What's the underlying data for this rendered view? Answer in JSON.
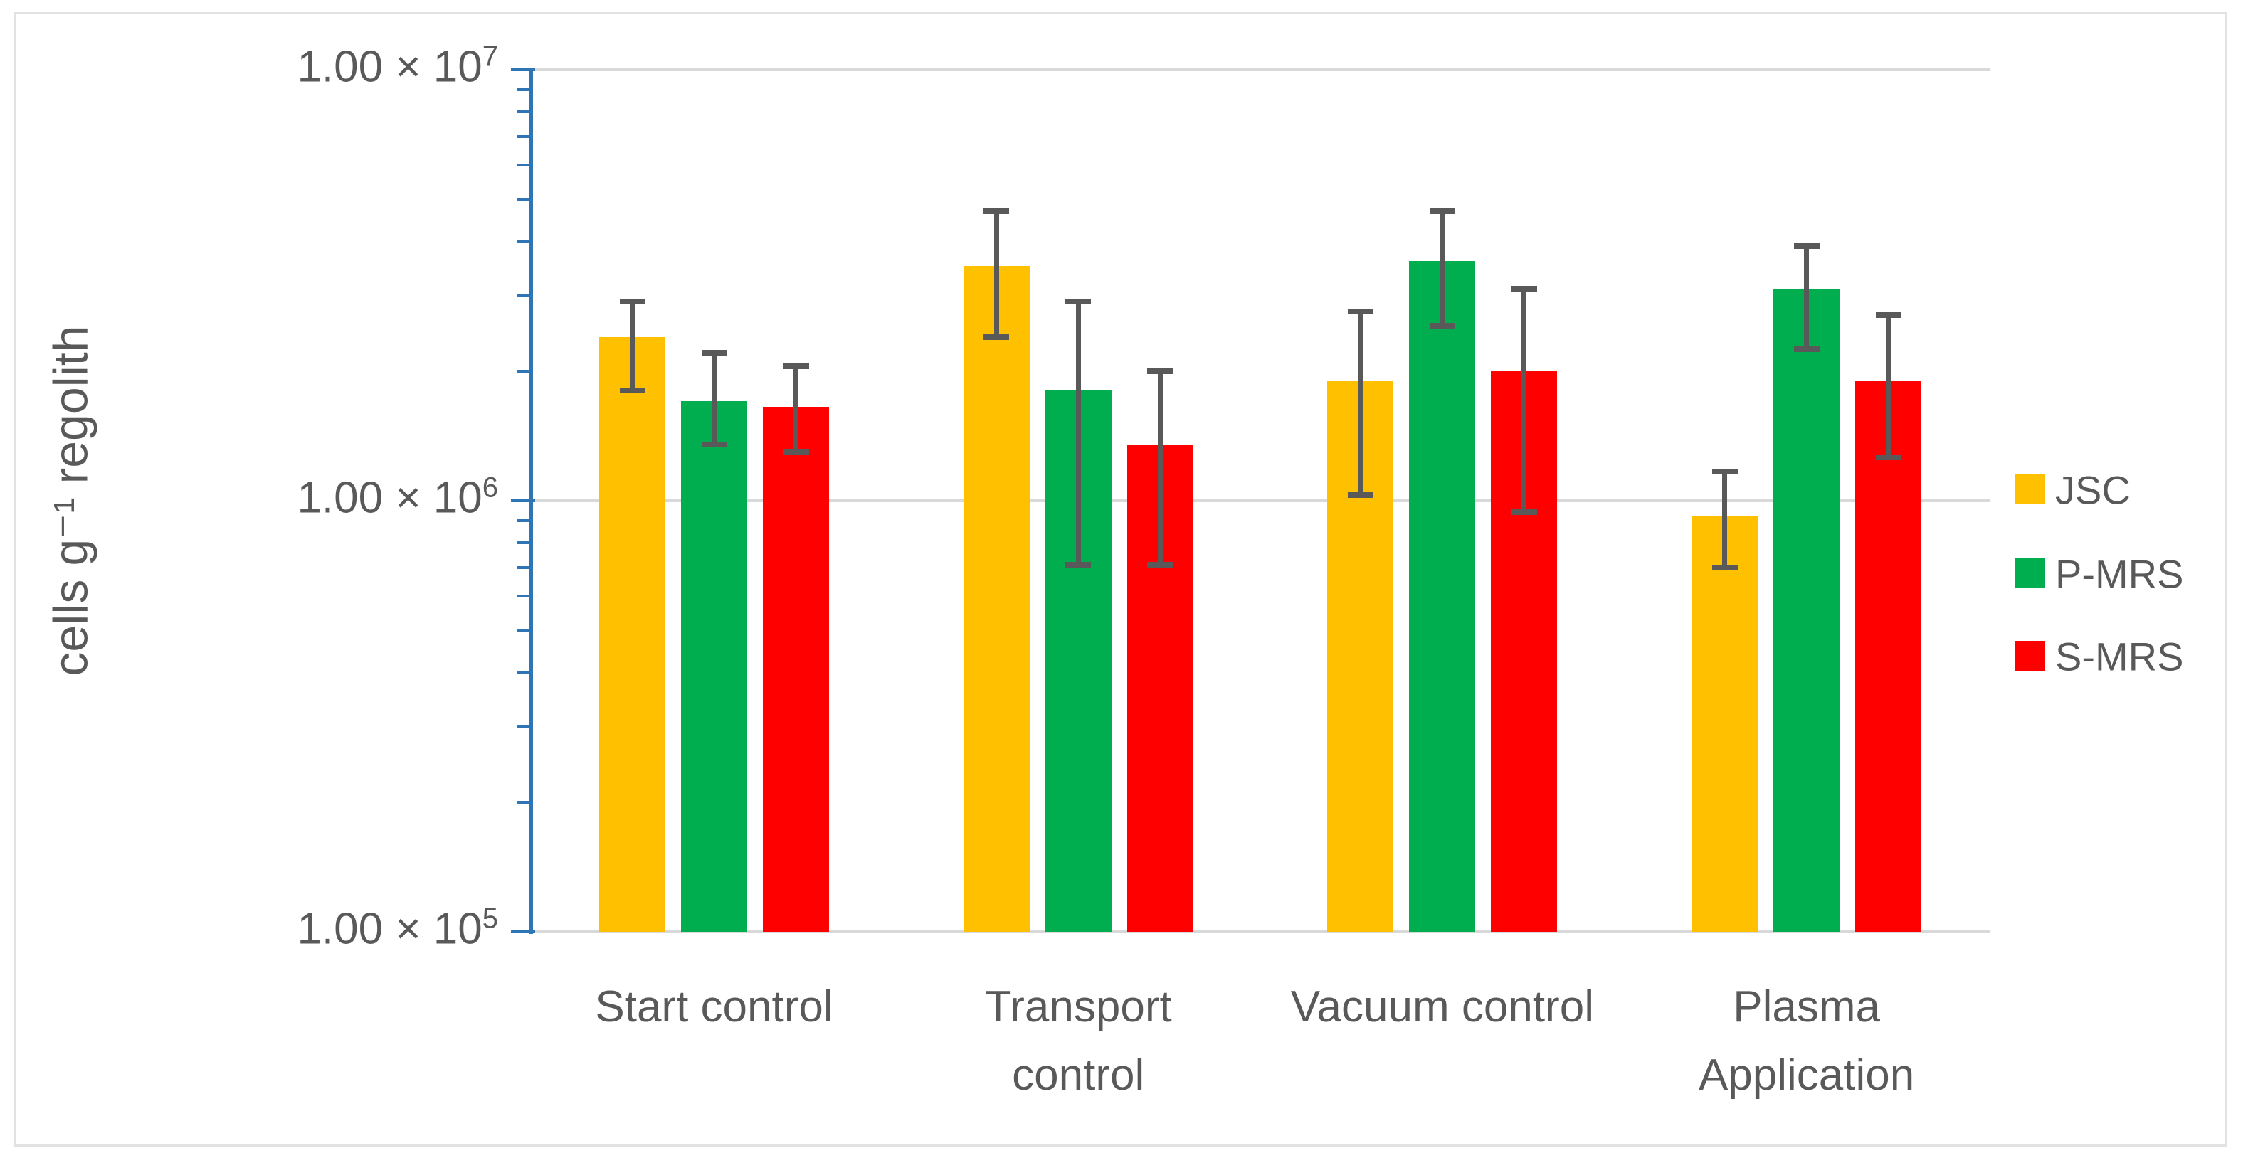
{
  "figure": {
    "background": "#FFFFFF",
    "border_color": "#E2E2E2"
  },
  "chart_data": {
    "type": "bar",
    "scale": "log",
    "title": "",
    "xlabel": "",
    "ylabel": "cells g⁻¹ regolith",
    "ylim": [
      100000,
      10000000
    ],
    "grid": "horizontal-major",
    "legend_position": "right",
    "axis_color": "#2E75B6",
    "gridline_color": "#D9D9D9",
    "error_bar_color": "#595959",
    "text_color": "#595959",
    "y_ticks": [
      {
        "base": "1.00 × 10",
        "exp": "7",
        "value": 10000000
      },
      {
        "base": "1.00 × 10",
        "exp": "6",
        "value": 1000000
      },
      {
        "base": "1.00 × 10",
        "exp": "5",
        "value": 100000
      }
    ],
    "categories": [
      "Start control",
      "Transport control",
      "Vacuum control",
      "Plasma Application"
    ],
    "category_label_lines": [
      [
        "Start control"
      ],
      [
        "Transport",
        "control"
      ],
      [
        "Vacuum control"
      ],
      [
        "Plasma",
        "Application"
      ]
    ],
    "series": [
      {
        "name": "JSC",
        "color": "#FFC000",
        "values": [
          2400000,
          3500000,
          1900000,
          920000
        ],
        "err_high": [
          2900000,
          4700000,
          2750000,
          1170000
        ],
        "err_low": [
          1800000,
          2400000,
          1030000,
          700000
        ]
      },
      {
        "name": "P-MRS",
        "color": "#00AE50",
        "values": [
          1700000,
          1800000,
          3600000,
          3100000
        ],
        "err_high": [
          2200000,
          2900000,
          4700000,
          3900000
        ],
        "err_low": [
          1350000,
          710000,
          2550000,
          2250000
        ]
      },
      {
        "name": "S-MRS",
        "color": "#FF0000",
        "values": [
          1650000,
          1350000,
          2000000,
          1900000
        ],
        "err_high": [
          2050000,
          2000000,
          3100000,
          2700000
        ],
        "err_low": [
          1300000,
          710000,
          940000,
          1260000
        ]
      }
    ]
  }
}
